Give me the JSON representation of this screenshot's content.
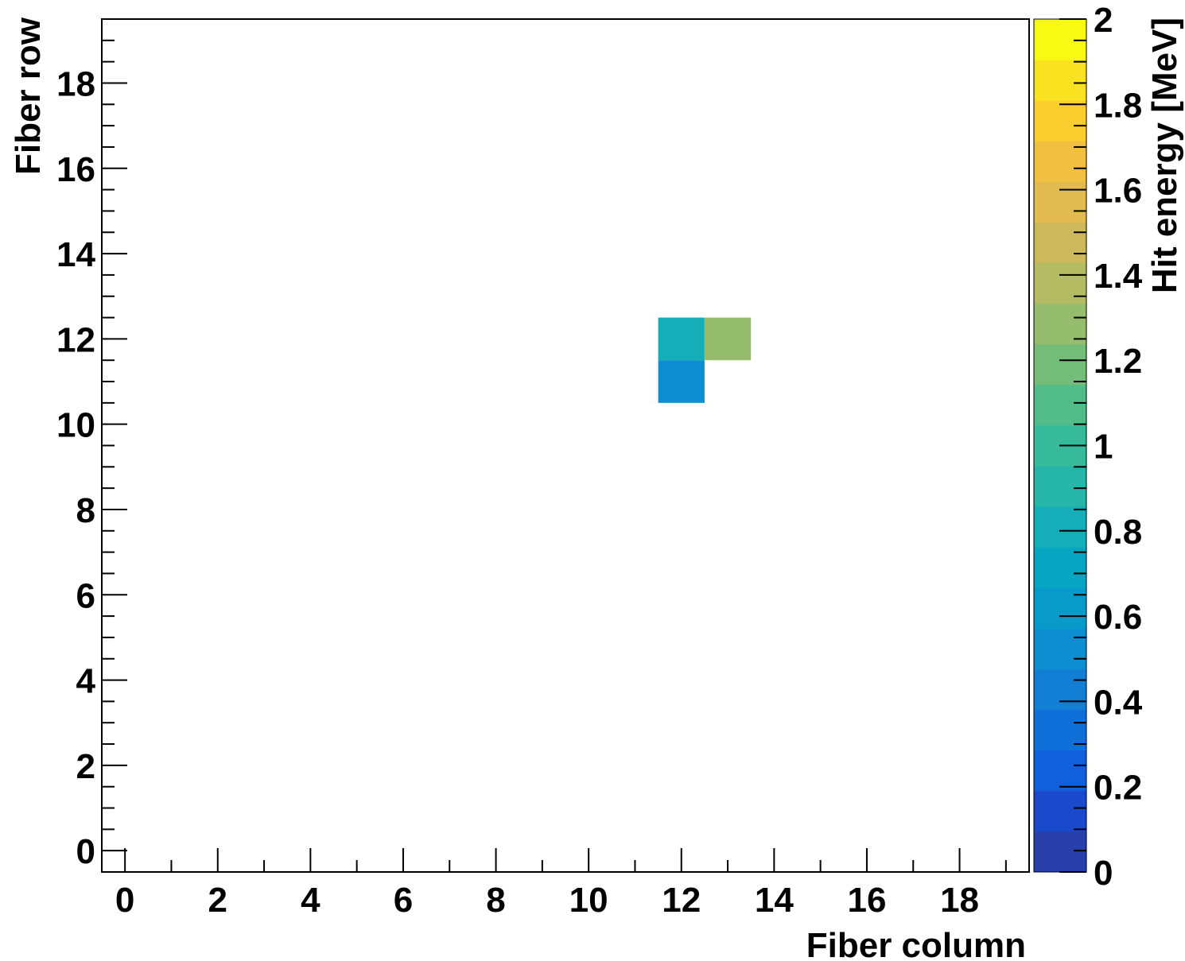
{
  "chart_data": {
    "type": "heatmap",
    "xlabel": "Fiber column",
    "ylabel": "Fiber row",
    "zlabel": "Hit energy [MeV]",
    "xlim": [
      -0.5,
      19.5
    ],
    "ylim": [
      -0.5,
      19.5
    ],
    "zlim": [
      0,
      2
    ],
    "x_ticks": [
      "0",
      "2",
      "4",
      "6",
      "8",
      "10",
      "12",
      "14",
      "16",
      "18"
    ],
    "y_ticks": [
      "0",
      "2",
      "4",
      "6",
      "8",
      "10",
      "12",
      "14",
      "16",
      "18"
    ],
    "z_ticks": [
      "0",
      "0.2",
      "0.4",
      "0.6",
      "0.8",
      "1",
      "1.2",
      "1.4",
      "1.6",
      "1.8",
      "2"
    ],
    "cells": [
      {
        "x": 12,
        "y": 12,
        "value": 0.85
      },
      {
        "x": 13,
        "y": 12,
        "value": 1.25
      },
      {
        "x": 12,
        "y": 11,
        "value": 0.55
      }
    ],
    "palette": [
      "#283ea8",
      "#1a4acb",
      "#1160db",
      "#1070d9",
      "#127fd5",
      "#0d8ed0",
      "#089bc9",
      "#06a6c3",
      "#15aeb8",
      "#26b5a9",
      "#37ba9a",
      "#52bc88",
      "#74bd79",
      "#95bd6d",
      "#b3bb63",
      "#cdb95b",
      "#e2bb50",
      "#f2c040",
      "#fbcd2e",
      "#f9e21f",
      "#f9fa14"
    ],
    "grid": false,
    "legend": "colorbar-right"
  }
}
